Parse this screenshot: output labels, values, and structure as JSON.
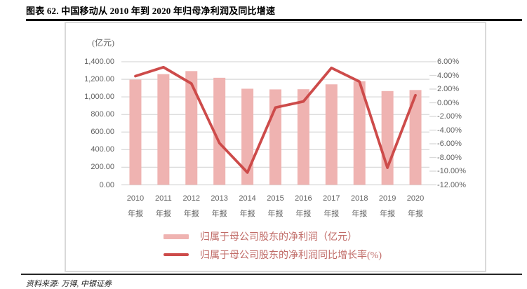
{
  "page": {
    "title": "图表 62. 中国移动从 2010 年到 2020 年归母净利润及同比增速",
    "source": "资料来源: 万得, 中银证券"
  },
  "chart_data": {
    "type": "combo-bar-line",
    "title": "图表 62. 中国移动从 2010 年到 2020 年归母净利润及同比增速",
    "categories": [
      "2010",
      "2011",
      "2012",
      "2013",
      "2014",
      "2015",
      "2016",
      "2017",
      "2018",
      "2019",
      "2020"
    ],
    "category_line2": "年报",
    "series": [
      {
        "name": "归属于母公司股东的净利润（亿元）",
        "type": "bar",
        "axis": "left",
        "values": [
          1196.4,
          1258.7,
          1293.6,
          1217.7,
          1093.1,
          1085.4,
          1087.4,
          1142.8,
          1177.8,
          1066.4,
          1078.4
        ]
      },
      {
        "name": "归属于母公司股东的净利润同比增长率(%)",
        "type": "line",
        "axis": "right",
        "values": [
          3.9,
          5.2,
          2.8,
          -5.9,
          -10.2,
          -0.7,
          0.2,
          5.1,
          3.1,
          -9.5,
          1.1
        ]
      }
    ],
    "left_axis": {
      "title": "(亿元)",
      "min": 0,
      "max": 1400,
      "step": 200,
      "tick_labels": [
        "1,400.00",
        "1,200.00",
        "1,000.00",
        "800.00",
        "600.00",
        "400.00",
        "200.00",
        "0.00"
      ]
    },
    "right_axis": {
      "min": -12,
      "max": 6,
      "step": 2,
      "tick_labels": [
        "6.00%",
        "4.00%",
        "2.00%",
        "0.00%",
        "-2.00%",
        "-4.00%",
        "-6.00%",
        "-8.00%",
        "-10.00%",
        "-12.00%"
      ]
    },
    "grid": true,
    "legend_position": "bottom-center"
  },
  "colors": {
    "bar": "#efb3b1",
    "line": "#cd4b4a",
    "grid": "#d9d9d9",
    "axis_text": "#616161",
    "legend_text": "#c06a66",
    "rule": "#1a1a1a"
  }
}
